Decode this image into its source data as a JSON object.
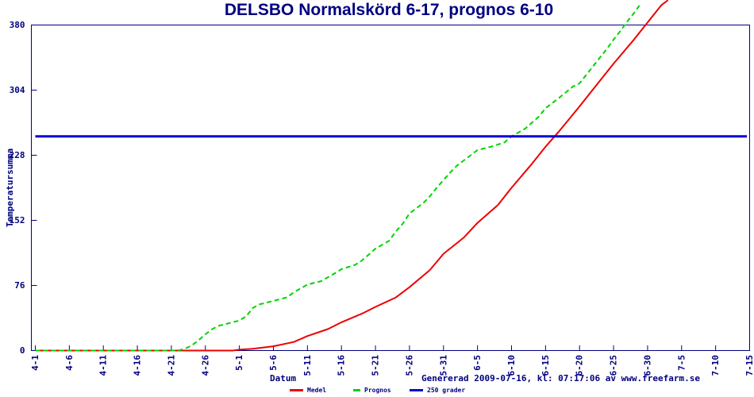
{
  "title": "DELSBO Normalskörd 6-17, prognos 6-10",
  "footer": "Genererad 2009-07-16, kl: 07:17:06 av www.freefarm.se",
  "colors": {
    "axis": "#000080",
    "text": "#000080",
    "medel": "#ee0000",
    "prognos": "#00d400",
    "threshold": "#0000dd",
    "background": "#ffffff"
  },
  "legend": {
    "items": [
      {
        "label": "Medel",
        "color": "#ee0000",
        "style": "solid"
      },
      {
        "label": "Prognos",
        "color": "#00d400",
        "style": "dash"
      },
      {
        "label": "250 grader",
        "color": "#0000dd",
        "style": "solid"
      }
    ]
  },
  "chart_data": {
    "type": "line",
    "title": "DELSBO Normalskörd 6-17, prognos 6-10",
    "xlabel": "Datum",
    "ylabel": "Temperatursumma",
    "x_axis_note": "x values are days since 4-1; ticks every 5 days",
    "x_tick_labels": [
      "4-1",
      "4-6",
      "4-11",
      "4-16",
      "4-21",
      "4-26",
      "5-1",
      "5-6",
      "5-11",
      "5-16",
      "5-21",
      "5-26",
      "5-31",
      "6-5",
      "6-10",
      "6-15",
      "6-20",
      "6-25",
      "6-30",
      "7-5",
      "7-10",
      "7-15"
    ],
    "x_tick_days": [
      0,
      5,
      10,
      15,
      20,
      25,
      30,
      35,
      40,
      45,
      50,
      55,
      60,
      65,
      70,
      75,
      80,
      85,
      90,
      95,
      100,
      105
    ],
    "y_ticks": [
      0,
      76,
      152,
      228,
      304,
      380
    ],
    "ylim": [
      0,
      380
    ],
    "grid": false,
    "legend_position": "bottom",
    "series": [
      {
        "name": "Medel",
        "color": "#ee0000",
        "dash": false,
        "width": 2,
        "points": [
          [
            0,
            0
          ],
          [
            10,
            0
          ],
          [
            20,
            0
          ],
          [
            29,
            0
          ],
          [
            30,
            1
          ],
          [
            32,
            2
          ],
          [
            35,
            5
          ],
          [
            38,
            10
          ],
          [
            40,
            17
          ],
          [
            43,
            25
          ],
          [
            45,
            33
          ],
          [
            48,
            43
          ],
          [
            50,
            51
          ],
          [
            53,
            62
          ],
          [
            55,
            74
          ],
          [
            58,
            94
          ],
          [
            60,
            113
          ],
          [
            63,
            132
          ],
          [
            65,
            149
          ],
          [
            68,
            170
          ],
          [
            70,
            190
          ],
          [
            73,
            218
          ],
          [
            75,
            238
          ],
          [
            77,
            256
          ],
          [
            80,
            285
          ],
          [
            83,
            315
          ],
          [
            85,
            335
          ],
          [
            88,
            363
          ],
          [
            90,
            383
          ],
          [
            92,
            403
          ],
          [
            93,
            409
          ]
        ]
      },
      {
        "name": "Prognos",
        "color": "#00d400",
        "dash": true,
        "width": 2,
        "points": [
          [
            0,
            0
          ],
          [
            5,
            0
          ],
          [
            10,
            0
          ],
          [
            15,
            0
          ],
          [
            20,
            0
          ],
          [
            21,
            0
          ],
          [
            22,
            2
          ],
          [
            23,
            6
          ],
          [
            24,
            12
          ],
          [
            25,
            19
          ],
          [
            26,
            25
          ],
          [
            27,
            29
          ],
          [
            28,
            31
          ],
          [
            29,
            33
          ],
          [
            30,
            35
          ],
          [
            31,
            40
          ],
          [
            32,
            50
          ],
          [
            33,
            54
          ],
          [
            34,
            56
          ],
          [
            35,
            58
          ],
          [
            37,
            62
          ],
          [
            38,
            68
          ],
          [
            40,
            77
          ],
          [
            42,
            81
          ],
          [
            44,
            90
          ],
          [
            45,
            95
          ],
          [
            47,
            100
          ],
          [
            48,
            105
          ],
          [
            49,
            112
          ],
          [
            50,
            119
          ],
          [
            52,
            128
          ],
          [
            53,
            139
          ],
          [
            54,
            148
          ],
          [
            55,
            160
          ],
          [
            57,
            172
          ],
          [
            58,
            180
          ],
          [
            59,
            190
          ],
          [
            60,
            199
          ],
          [
            61,
            208
          ],
          [
            62,
            216
          ],
          [
            63,
            222
          ],
          [
            64,
            228
          ],
          [
            65,
            234
          ],
          [
            67,
            238
          ],
          [
            69,
            243
          ],
          [
            70,
            250
          ],
          [
            72,
            259
          ],
          [
            74,
            273
          ],
          [
            75,
            283
          ],
          [
            77,
            295
          ],
          [
            79,
            308
          ],
          [
            80,
            312
          ],
          [
            82,
            332
          ],
          [
            84,
            352
          ],
          [
            85,
            363
          ],
          [
            86,
            373
          ],
          [
            87,
            384
          ],
          [
            88,
            394
          ],
          [
            89,
            405
          ]
        ]
      },
      {
        "name": "250 grader",
        "color": "#0000dd",
        "dash": false,
        "width": 3,
        "points": [
          [
            0,
            250
          ],
          [
            104.6,
            250
          ]
        ]
      }
    ]
  }
}
